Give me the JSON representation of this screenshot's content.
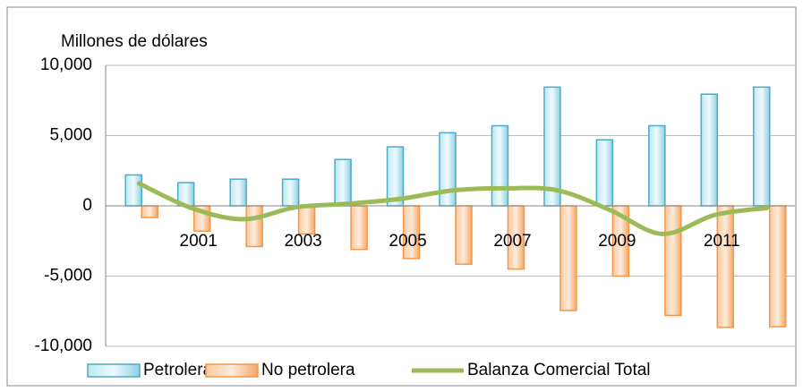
{
  "chart_data": {
    "type": "bar_line",
    "y_label": "Millones de dólares",
    "categories": [
      null,
      "2001",
      null,
      "2003",
      null,
      "2005",
      null,
      "2007",
      null,
      "2009",
      null,
      "2011",
      null
    ],
    "series": [
      {
        "name": "Petrolera",
        "type": "bar",
        "color": "#4bacc6",
        "values": [
          2200,
          1650,
          1900,
          1900,
          3300,
          4200,
          5200,
          5700,
          8450,
          4700,
          5700,
          7950,
          8450
        ]
      },
      {
        "name": "No petrolera",
        "type": "bar",
        "color": "#f79646",
        "values": [
          -830,
          -1800,
          -2900,
          -2000,
          -3100,
          -3750,
          -4150,
          -4500,
          -7450,
          -5000,
          -7800,
          -8650,
          -8600
        ]
      },
      {
        "name": "Balanza Comercial Total",
        "type": "line",
        "color": "#9bbb59",
        "values": [
          1600,
          -150,
          -950,
          -100,
          150,
          500,
          1100,
          1250,
          1100,
          -300,
          -2000,
          -650,
          -150
        ]
      }
    ],
    "ylim": [
      -10000,
      10000
    ],
    "yticks": [
      {
        "value": -10000,
        "label": "-10,000"
      },
      {
        "value": -5000,
        "label": "-5,000"
      },
      0,
      {
        "value": 5000,
        "label": "5,000"
      },
      {
        "value": 10000,
        "label": "10,000"
      }
    ],
    "grid": true,
    "legend": "bottom"
  }
}
